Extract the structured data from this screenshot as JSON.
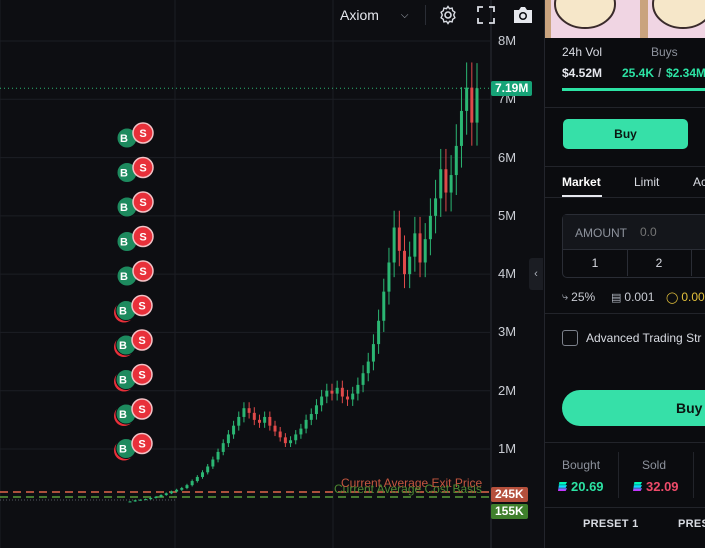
{
  "toolbar": {
    "app_name": "Axiom",
    "icons": [
      "chevron-down-icon",
      "gear-icon",
      "fullscreen-icon",
      "camera-icon"
    ]
  },
  "chart_data": {
    "type": "candlestick",
    "y_ticks": [
      "8M",
      "7M",
      "6M",
      "5M",
      "4M",
      "3M",
      "2M",
      "1M"
    ],
    "y_tick_values": [
      8000000,
      7000000,
      6000000,
      5000000,
      4000000,
      3000000,
      2000000,
      1000000
    ],
    "ylim": [
      -200000,
      8150000
    ],
    "current_price_label": "7.19M",
    "current_price": 7190000,
    "lines": [
      {
        "label": "Current Average Exit Price",
        "value_label": "245K",
        "value": 245000,
        "color": "#e0674a"
      },
      {
        "label": "Current Average Cost Basis",
        "value_label": "155K",
        "value": 155000,
        "color": "#5a9b3a"
      }
    ],
    "trade_markers": {
      "buy_label": "B",
      "sell_label": "S",
      "count": 10
    },
    "close_series": [
      0.1,
      0.12,
      0.13,
      0.14,
      0.16,
      0.18,
      0.21,
      0.24,
      0.27,
      0.3,
      0.33,
      0.38,
      0.45,
      0.52,
      0.6,
      0.7,
      0.82,
      0.95,
      1.1,
      1.25,
      1.4,
      1.55,
      1.7,
      1.62,
      1.5,
      1.45,
      1.55,
      1.4,
      1.3,
      1.2,
      1.1,
      1.15,
      1.25,
      1.35,
      1.5,
      1.6,
      1.75,
      1.9,
      2.0,
      1.95,
      2.05,
      1.9,
      1.85,
      1.95,
      2.1,
      2.3,
      2.5,
      2.8,
      3.2,
      3.7,
      4.2,
      4.8,
      4.4,
      4.0,
      4.3,
      4.7,
      4.2,
      4.6,
      5.0,
      5.3,
      5.8,
      5.4,
      5.7,
      6.2,
      6.8,
      7.2,
      6.6,
      7.19
    ],
    "candle_colors": {
      "up": "#2bb673",
      "down": "#e04a4a"
    }
  },
  "panel": {
    "stats": [
      {
        "label": "24h Vol",
        "value": "$4.52M"
      },
      {
        "label": "Buys",
        "value": "25.4K",
        "value2": "$2.34M"
      }
    ],
    "buy_top_label": "Buy",
    "order_tabs": [
      "Market",
      "Limit",
      "Ac"
    ],
    "amount_label": "AMOUNT",
    "amount_placeholder": "0.0",
    "quick_amounts": [
      "1",
      "2",
      ""
    ],
    "settings": [
      {
        "icon": "slippage-icon",
        "value": "25%"
      },
      {
        "icon": "gas-icon",
        "value": "0.001"
      },
      {
        "icon": "coin-icon",
        "value": "0.00"
      }
    ],
    "advanced_label": "Advanced Trading Str",
    "buy_big_label": "Buy",
    "bought_label": "Bought",
    "bought_value": "20.69",
    "sold_label": "Sold",
    "sold_value": "32.09",
    "presets": [
      "PRESET 1",
      "PRES"
    ]
  }
}
